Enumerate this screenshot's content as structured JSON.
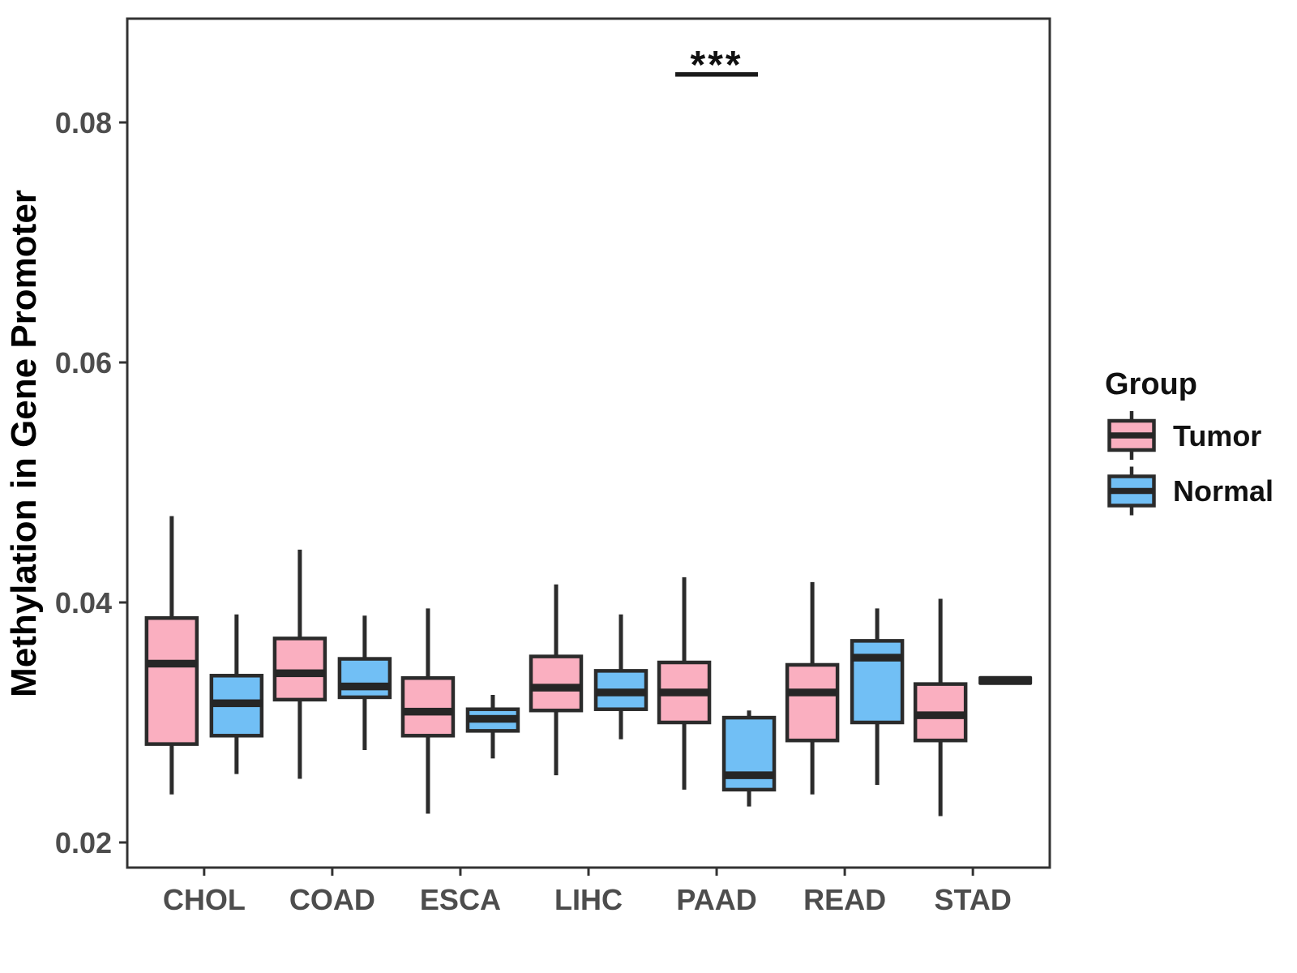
{
  "figure": {
    "background": "#ffffff",
    "ylabel": "Methylation in Gene Promoter",
    "significance": {
      "label": "***",
      "category": "PAAD"
    },
    "legend": {
      "title": "Group",
      "items": [
        {
          "label": "Tumor",
          "color": "#FAAFC0"
        },
        {
          "label": "Normal",
          "color": "#71BFF5"
        }
      ]
    },
    "colors": {
      "box_stroke": "#2b2b2b",
      "median": "#262626",
      "panel_border": "#333333",
      "tick_text": "#4d4d4d",
      "annotation": "#1a1a1a"
    }
  },
  "chart_data": {
    "type": "boxplot",
    "title": "",
    "xlabel": "",
    "ylabel": "Methylation in Gene Promoter",
    "categories": [
      "CHOL",
      "COAD",
      "ESCA",
      "LIHC",
      "PAAD",
      "READ",
      "STAD"
    ],
    "groups": [
      "Tumor",
      "Normal"
    ],
    "yticks": [
      0.02,
      0.04,
      0.06,
      0.08
    ],
    "ylim": [
      0.018,
      0.0886
    ],
    "grid": false,
    "legend_position": "right",
    "series": [
      {
        "name": "Tumor",
        "color": "#FAAFC0",
        "stats": [
          {
            "category": "CHOL",
            "low": 0.024,
            "q1": 0.0282,
            "median": 0.0349,
            "q3": 0.0387,
            "high": 0.0472
          },
          {
            "category": "COAD",
            "low": 0.0253,
            "q1": 0.0319,
            "median": 0.0341,
            "q3": 0.037,
            "high": 0.0444
          },
          {
            "category": "ESCA",
            "low": 0.0224,
            "q1": 0.0289,
            "median": 0.0309,
            "q3": 0.0337,
            "high": 0.0395
          },
          {
            "category": "LIHC",
            "low": 0.0256,
            "q1": 0.031,
            "median": 0.0329,
            "q3": 0.0355,
            "high": 0.0415
          },
          {
            "category": "PAAD",
            "low": 0.0244,
            "q1": 0.03,
            "median": 0.0325,
            "q3": 0.035,
            "high": 0.0421
          },
          {
            "category": "READ",
            "low": 0.024,
            "q1": 0.0285,
            "median": 0.0325,
            "q3": 0.0348,
            "high": 0.0417
          },
          {
            "category": "STAD",
            "low": 0.0222,
            "q1": 0.0285,
            "median": 0.0306,
            "q3": 0.0332,
            "high": 0.0403
          }
        ]
      },
      {
        "name": "Normal",
        "color": "#71BFF5",
        "stats": [
          {
            "category": "CHOL",
            "low": 0.0257,
            "q1": 0.0289,
            "median": 0.0316,
            "q3": 0.0339,
            "high": 0.039
          },
          {
            "category": "COAD",
            "low": 0.0277,
            "q1": 0.0321,
            "median": 0.033,
            "q3": 0.0353,
            "high": 0.0389
          },
          {
            "category": "ESCA",
            "low": 0.027,
            "q1": 0.0293,
            "median": 0.0303,
            "q3": 0.0311,
            "high": 0.0323
          },
          {
            "category": "LIHC",
            "low": 0.0286,
            "q1": 0.0311,
            "median": 0.0325,
            "q3": 0.0343,
            "high": 0.039
          },
          {
            "category": "PAAD",
            "low": 0.023,
            "q1": 0.0244,
            "median": 0.0256,
            "q3": 0.0304,
            "high": 0.031
          },
          {
            "category": "READ",
            "low": 0.0248,
            "q1": 0.03,
            "median": 0.0354,
            "q3": 0.0368,
            "high": 0.0395
          },
          {
            "category": "STAD",
            "low": 0.0335,
            "q1": 0.0335,
            "median": 0.0335,
            "q3": 0.0335,
            "high": 0.0335
          }
        ]
      }
    ],
    "annotations": [
      {
        "text": "***",
        "category": "PAAD",
        "compares": [
          "Tumor",
          "Normal"
        ],
        "bar_value": 0.084,
        "text_value": 0.0853
      }
    ]
  }
}
